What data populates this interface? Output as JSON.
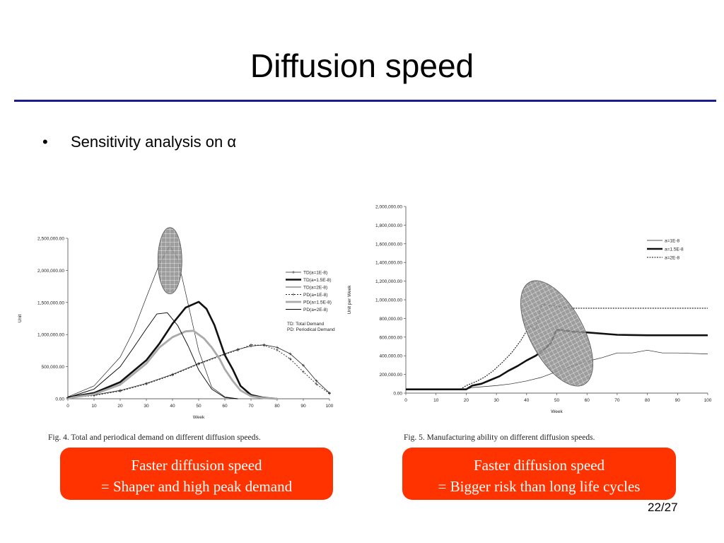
{
  "slide": {
    "title": "Diffusion speed",
    "bullet": "Sensitivity analysis on α",
    "page_number": "22/27"
  },
  "callouts": [
    {
      "line1": "Faster diffusion speed",
      "line2": "= Shaper and high peak demand"
    },
    {
      "line1": "Faster diffusion speed",
      "line2": "= Bigger risk than long life cycles"
    }
  ],
  "colors": {
    "title_rule": "#1c1c8f",
    "callout_bg": "#ff3300",
    "callout_text": "#ffffff",
    "highlight_ellipse": "#8c8c8c"
  },
  "chart_data": [
    {
      "type": "line",
      "title": "",
      "caption": "Fig. 4. Total and periodical demand on different diffusion speeds.",
      "xlabel": "Week",
      "ylabel": "Unit",
      "xlim": [
        0,
        100
      ],
      "ylim": [
        0,
        2500000
      ],
      "x_ticks": [
        "0",
        "10",
        "20",
        "30",
        "40",
        "50",
        "60",
        "70",
        "80",
        "90",
        "100"
      ],
      "y_ticks": [
        "0.00",
        "500,000.00",
        "1,000,000.00",
        "1,500,000.00",
        "2,000,000.00",
        "2,500,000.00"
      ],
      "legend_position": "right",
      "note": [
        "TD:   Total      Demand",
        "PD: Periodical Demand"
      ],
      "highlight": {
        "shape": "ellipse",
        "x_center": 39,
        "y_center": 2150000
      },
      "series": [
        {
          "name": "TD(a=1E-8)",
          "style": "thin-plus",
          "x": [
            0,
            10,
            20,
            30,
            40,
            50,
            60,
            65,
            70,
            75,
            80,
            85,
            90,
            95,
            100
          ],
          "y": [
            20000,
            60000,
            130000,
            240000,
            380000,
            550000,
            700000,
            770000,
            820000,
            840000,
            800000,
            700000,
            520000,
            280000,
            90000
          ]
        },
        {
          "name": "TD(a=1.5E-8)",
          "style": "thick",
          "x": [
            0,
            10,
            20,
            30,
            35,
            40,
            45,
            50,
            53,
            56,
            60,
            63,
            66,
            70,
            75,
            80
          ],
          "y": [
            20000,
            90000,
            260000,
            600000,
            860000,
            1170000,
            1420000,
            1510000,
            1400000,
            1150000,
            680000,
            460000,
            200000,
            60000,
            15000,
            0
          ]
        },
        {
          "name": "TD(a=2E-8)",
          "style": "thin",
          "x": [
            0,
            10,
            20,
            25,
            30,
            35,
            39,
            42,
            45,
            50,
            55,
            60,
            65
          ],
          "y": [
            30000,
            200000,
            650000,
            1050000,
            1580000,
            2100000,
            2380000,
            2180000,
            1650000,
            750000,
            180000,
            30000,
            0
          ]
        },
        {
          "name": "PD(a=1E-8)",
          "style": "thin-plus-dotted",
          "x": [
            0,
            10,
            20,
            30,
            40,
            50,
            60,
            65,
            70,
            75,
            80,
            85,
            90,
            95,
            100
          ],
          "y": [
            15000,
            50000,
            120000,
            230000,
            370000,
            540000,
            690000,
            760000,
            840000,
            830000,
            760000,
            620000,
            420000,
            230000,
            80000
          ]
        },
        {
          "name": "PD(a=1.5E-8)",
          "style": "gray-thick",
          "x": [
            0,
            10,
            20,
            30,
            35,
            40,
            45,
            48,
            52,
            55,
            58,
            60,
            63,
            66,
            70,
            75,
            80
          ],
          "y": [
            10000,
            70000,
            220000,
            550000,
            800000,
            960000,
            1050000,
            1060000,
            940000,
            800000,
            620000,
            460000,
            280000,
            130000,
            40000,
            10000,
            0
          ]
        },
        {
          "name": "PD(a=2E-8)",
          "style": "thin-black",
          "x": [
            0,
            10,
            20,
            25,
            30,
            34,
            38,
            42,
            46,
            50,
            55,
            60,
            65
          ],
          "y": [
            20000,
            150000,
            500000,
            790000,
            1090000,
            1320000,
            1340000,
            1140000,
            820000,
            450000,
            150000,
            20000,
            0
          ]
        }
      ]
    },
    {
      "type": "line",
      "title": "",
      "caption": "Fig. 5. Manufacturing ability on different diffusion speeds.",
      "xlabel": "Week",
      "ylabel": "Unit per Week",
      "xlim": [
        0,
        100
      ],
      "ylim": [
        0,
        2000000
      ],
      "x_ticks": [
        "0",
        "10",
        "20",
        "30",
        "40",
        "50",
        "60",
        "70",
        "80",
        "90",
        "100"
      ],
      "y_ticks": [
        "0.00",
        "200,000.00",
        "400,000.00",
        "600,000.00",
        "800,000.00",
        "1,000,000.00",
        "1,200,000.00",
        "1,400,000.00",
        "1,600,000.00",
        "1,800,000.00",
        "2,000,000.00"
      ],
      "legend_position": "top-right",
      "highlight": {
        "shape": "ellipse",
        "x_center": 50,
        "y_center": 640000
      },
      "series": [
        {
          "name": "a=1E-8",
          "style": "thin",
          "x": [
            0,
            20,
            22,
            30,
            35,
            40,
            45,
            50,
            55,
            60,
            65,
            70,
            75,
            80,
            85,
            90,
            100
          ],
          "y": [
            40000,
            40000,
            60000,
            80000,
            100000,
            130000,
            170000,
            230000,
            290000,
            340000,
            380000,
            430000,
            430000,
            460000,
            430000,
            430000,
            420000
          ]
        },
        {
          "name": "a=1.5E-8",
          "style": "thick",
          "x": [
            0,
            20,
            22,
            25,
            28,
            31,
            34,
            37,
            40,
            43,
            46,
            48,
            50,
            55,
            60,
            70,
            80,
            90,
            100
          ],
          "y": [
            40000,
            40000,
            80000,
            100000,
            140000,
            180000,
            240000,
            290000,
            350000,
            400000,
            470000,
            540000,
            680000,
            660000,
            650000,
            625000,
            620000,
            620000,
            620000
          ]
        },
        {
          "name": "a=2E-8",
          "style": "dotted",
          "x": [
            0,
            18,
            20,
            23,
            26,
            29,
            32,
            35,
            38,
            41,
            43,
            45,
            50,
            55,
            60,
            70,
            80,
            90,
            100
          ],
          "y": [
            40000,
            40000,
            80000,
            120000,
            170000,
            240000,
            330000,
            430000,
            560000,
            720000,
            680000,
            950000,
            930000,
            910000,
            910000,
            910000,
            910000,
            910000,
            910000
          ]
        }
      ]
    }
  ]
}
